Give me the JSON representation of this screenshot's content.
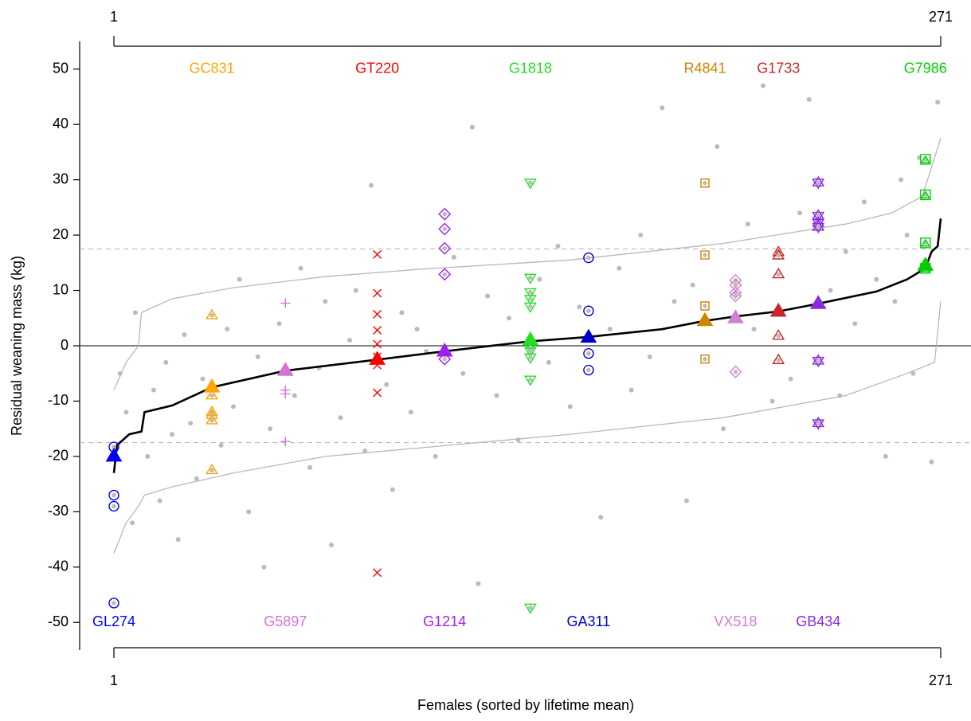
{
  "chart_data": {
    "type": "scatter",
    "xlabel": "Females (sorted by lifetime mean)",
    "ylabel": "Residual weaning mass (kg)",
    "xlim": [
      1,
      271
    ],
    "xticks": [
      1,
      271
    ],
    "ylim": [
      -55,
      55
    ],
    "yticks": [
      -50,
      -40,
      -30,
      -20,
      -10,
      0,
      10,
      20,
      30,
      40,
      50
    ],
    "zero_line": 0,
    "dashed_lines": [
      17.5,
      -17.5
    ],
    "others": {
      "color": "#bbbbbb",
      "x": [
        3,
        5,
        7,
        8,
        12,
        14,
        16,
        18,
        20,
        22,
        24,
        26,
        28,
        30,
        36,
        38,
        40,
        42,
        45,
        48,
        50,
        52,
        55,
        60,
        62,
        65,
        68,
        70,
        72,
        75,
        78,
        80,
        83,
        85,
        90,
        92,
        95,
        98,
        100,
        103,
        106,
        112,
        115,
        118,
        120,
        123,
        126,
        130,
        133,
        140,
        143,
        146,
        150,
        153,
        160,
        163,
        166,
        170,
        173,
        176,
        180,
        184,
        188,
        190,
        198,
        200,
        208,
        210,
        213,
        216,
        222,
        225,
        228,
        235,
        238,
        240,
        243,
        246,
        250,
        253,
        256,
        258,
        260,
        262,
        264,
        268,
        270
      ],
      "values": [
        -5,
        -12,
        -32,
        6,
        -20,
        -8,
        -28,
        -3,
        -16,
        -35,
        2,
        -14,
        -24,
        -6,
        -18,
        3,
        -11,
        12,
        -30,
        -2,
        -40,
        -15,
        4,
        -9,
        14,
        -22,
        -4,
        8,
        -36,
        -13,
        1,
        10,
        -19,
        29,
        -7,
        -26,
        6,
        -12,
        3,
        -1,
        -20,
        16,
        -5,
        39.5,
        -43,
        9,
        -9,
        5,
        -17,
        12,
        -3,
        18,
        -11,
        7,
        -31,
        3,
        14,
        -8,
        20,
        -2,
        43,
        8,
        -28,
        11,
        36,
        -15,
        22,
        3,
        47,
        -10,
        -6,
        24,
        44.5,
        10,
        -9,
        17,
        4,
        26,
        12,
        -20,
        8,
        30,
        20,
        -5,
        34,
        -21,
        44
      ]
    },
    "mean_curve": {
      "color": "#000000",
      "x": [
        1,
        2,
        6,
        10,
        11,
        20,
        33,
        57,
        87,
        109,
        137,
        156,
        180,
        194,
        204,
        218,
        231,
        250,
        260,
        266,
        268,
        270,
        271
      ],
      "values": [
        -23,
        -18,
        -16,
        -15.5,
        -12,
        -10.8,
        -7.5,
        -4.5,
        -2.5,
        -1,
        0.8,
        1.6,
        3,
        4.5,
        5.3,
        6.2,
        7.6,
        9.8,
        12,
        14,
        17,
        18,
        23
      ]
    },
    "envelope_upper": {
      "color": "#b8b8b8",
      "x": [
        1,
        5,
        9,
        10,
        20,
        40,
        70,
        100,
        150,
        200,
        240,
        255,
        265,
        271
      ],
      "values": [
        -8,
        -3,
        0,
        6,
        8.5,
        10.5,
        12.5,
        13.8,
        15.5,
        18.5,
        22,
        24,
        27,
        37.5
      ]
    },
    "envelope_lower": {
      "color": "#b8b8b8",
      "x": [
        1,
        5,
        9,
        11,
        20,
        40,
        70,
        100,
        150,
        200,
        240,
        260,
        269,
        271
      ],
      "values": [
        -37.5,
        -32,
        -29,
        -27,
        -25.5,
        -23,
        -20,
        -18.5,
        -16,
        -13,
        -9,
        -5,
        -3,
        8
      ]
    },
    "series": [
      {
        "name": "GL274",
        "color": "#0000ff",
        "marker": "circle",
        "label_row": "bottom",
        "x": 1,
        "mean": -20,
        "values": [
          -18.3,
          -27,
          -29,
          -46.5
        ]
      },
      {
        "name": "GC831",
        "color": "#ffa500",
        "marker": "triangle",
        "label_row": "top",
        "x": 33,
        "mean": -7.5,
        "values": [
          5.5,
          -9,
          -12,
          -12.5,
          -13.5,
          -22.5
        ]
      },
      {
        "name": "G5897",
        "color": "#da70d6",
        "marker": "plus",
        "label_row": "bottom",
        "x": 57,
        "mean": -4.5,
        "values": [
          7.7,
          -8,
          -8.7,
          -17.3
        ]
      },
      {
        "name": "GT220",
        "color": "#ff0000",
        "marker": "cross",
        "label_row": "top",
        "x": 87,
        "mean": -2.5,
        "values": [
          16.5,
          9.5,
          5.7,
          2.8,
          0.3,
          -2,
          -3.5,
          -8.5,
          -41
        ]
      },
      {
        "name": "G1214",
        "color": "#a020f0",
        "marker": "diamond",
        "label_row": "bottom",
        "x": 109,
        "mean": -1,
        "values": [
          23.8,
          21.1,
          17.6,
          12.9,
          -2.4
        ]
      },
      {
        "name": "G1818",
        "color": "#22e022",
        "marker": "triangle-down",
        "label_row": "top",
        "x": 137,
        "mean": 1,
        "values": [
          29.5,
          12.3,
          9.7,
          8.5,
          7.1,
          -0.3,
          -1,
          -2.1,
          -6.1,
          -47.3
        ]
      },
      {
        "name": "GA311",
        "color": "#0000cd",
        "marker": "circle",
        "label_row": "bottom",
        "x": 156,
        "mean": 1.5,
        "values": [
          15.9,
          6.3,
          -1.4,
          -4.4
        ]
      },
      {
        "name": "R4841",
        "color": "#cd8500",
        "marker": "square",
        "label_row": "top",
        "x": 194,
        "mean": 4.5,
        "values": [
          29.4,
          16.4,
          7.2,
          -2.4
        ]
      },
      {
        "name": "VX518",
        "color": "#d080d0",
        "marker": "diamond",
        "label_row": "bottom",
        "x": 204,
        "mean": 5,
        "values": [
          11.8,
          11,
          9.6,
          9,
          -4.7
        ]
      },
      {
        "name": "G1733",
        "color": "#cd2626",
        "marker": "triangle",
        "label_row": "top",
        "x": 218,
        "mean": 6.2,
        "values": [
          16.9,
          16.3,
          12.9,
          1.8,
          -2.6
        ]
      },
      {
        "name": "GB434",
        "color": "#8a2be2",
        "marker": "star",
        "label_row": "bottom",
        "x": 231,
        "mean": 7.6,
        "values": [
          29.5,
          23.5,
          22.2,
          21.5,
          -2.7,
          -14
        ]
      },
      {
        "name": "G7986",
        "color": "#00cd00",
        "marker": "square-triangle",
        "label_row": "top",
        "x": 266,
        "mean": 14.5,
        "values": [
          33.7,
          27.3,
          18.6,
          14
        ]
      }
    ]
  }
}
